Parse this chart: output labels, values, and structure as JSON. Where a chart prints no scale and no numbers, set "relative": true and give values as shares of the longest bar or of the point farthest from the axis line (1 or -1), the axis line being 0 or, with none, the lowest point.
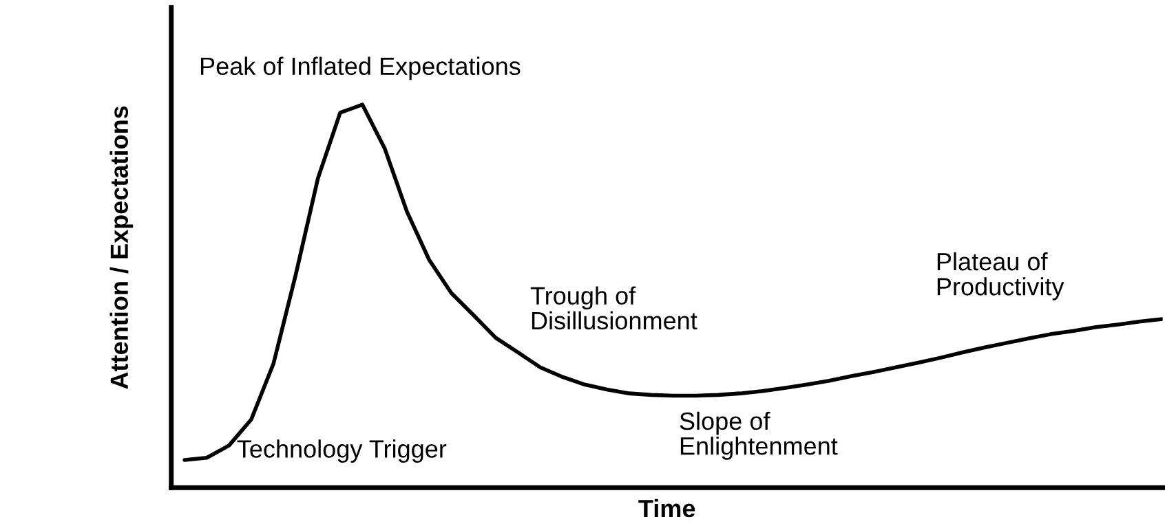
{
  "chart_data": {
    "type": "line",
    "relative": true,
    "xlabel": "Time",
    "ylabel": "Attention / Expectations",
    "color": "#000000",
    "marker": "none",
    "line_style": "solid",
    "tick_labels": false,
    "categories": [
      null,
      null,
      null,
      null,
      null,
      null,
      null,
      null,
      null,
      null,
      null,
      null,
      null,
      null,
      null,
      null,
      null,
      null,
      null,
      null,
      null,
      null,
      null,
      null,
      null,
      null,
      null,
      null,
      null,
      null,
      null,
      null,
      null,
      null,
      null,
      null,
      null,
      null,
      null,
      null,
      null,
      null,
      null,
      null,
      null
    ],
    "values": [
      0.072,
      0.078,
      0.11,
      0.178,
      0.324,
      0.556,
      0.808,
      0.979,
      1.0,
      0.886,
      0.721,
      0.595,
      0.508,
      0.45,
      0.391,
      0.353,
      0.314,
      0.289,
      0.269,
      0.256,
      0.246,
      0.242,
      0.24,
      0.24,
      0.242,
      0.246,
      0.252,
      0.26,
      0.269,
      0.279,
      0.291,
      0.302,
      0.314,
      0.326,
      0.339,
      0.353,
      0.366,
      0.378,
      0.39,
      0.401,
      0.409,
      0.419,
      0.426,
      0.434,
      0.44
    ],
    "annotations": [
      "Peak of Inflated Expectations",
      "Trough of\nDisillusionment",
      "Plateau of\nProductivity",
      "Technology Trigger",
      "Slope of\nEnlightenment"
    ]
  }
}
